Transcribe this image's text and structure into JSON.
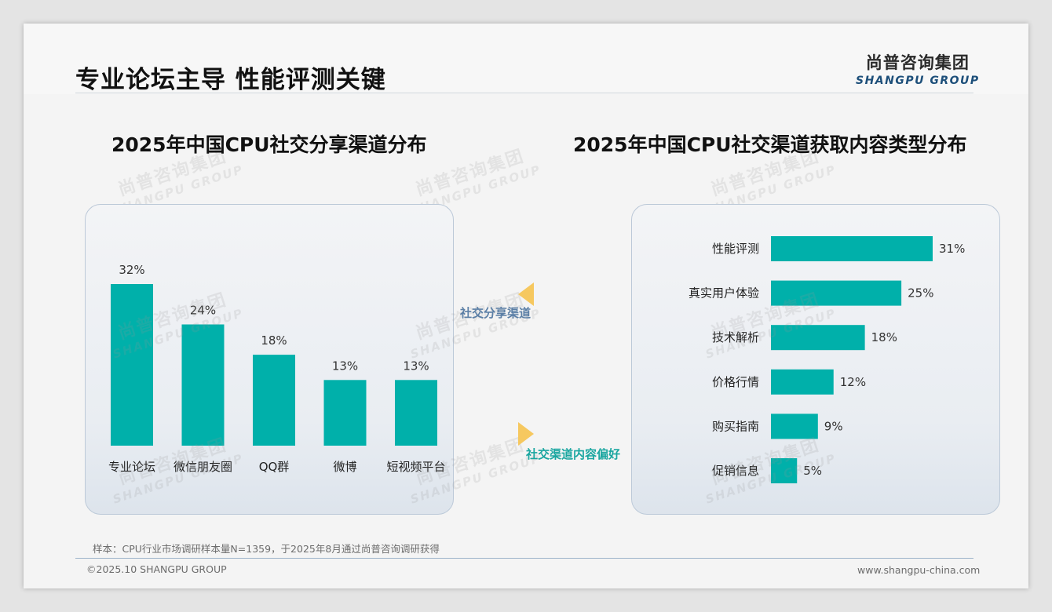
{
  "header": {
    "title": "专业论坛主导 性能评测关键",
    "logo_cn": "尚普咨询集团",
    "logo_en": "SHANGPU GROUP"
  },
  "colors": {
    "bar": "#00b0aa",
    "accent_arrow": "#f6c85f",
    "mid_label_top": "#5b7fa6",
    "mid_label_bottom": "#1aa6a0"
  },
  "middle": {
    "label_top": "社交分享渠道",
    "label_bottom": "社交渠道内容偏好"
  },
  "chart_data": [
    {
      "type": "bar",
      "title": "2025年中国CPU社交分享渠道分布",
      "categories": [
        "专业论坛",
        "微信朋友圈",
        "QQ群",
        "微博",
        "短视频平台"
      ],
      "values": [
        32,
        24,
        18,
        13,
        13
      ],
      "value_labels": [
        "32%",
        "24%",
        "18%",
        "13%",
        "13%"
      ],
      "unit": "%",
      "xlabel": "",
      "ylabel": "",
      "ylim": [
        0,
        32
      ],
      "grid": false,
      "legend": "none"
    },
    {
      "type": "bar",
      "orientation": "horizontal",
      "title": "2025年中国CPU社交渠道获取内容类型分布",
      "categories": [
        "性能评测",
        "真实用户体验",
        "技术解析",
        "价格行情",
        "购买指南",
        "促销信息"
      ],
      "values": [
        31,
        25,
        18,
        12,
        9,
        5
      ],
      "value_labels": [
        "31%",
        "25%",
        "18%",
        "12%",
        "9%",
        "5%"
      ],
      "unit": "%",
      "xlabel": "",
      "ylabel": "",
      "xlim": [
        0,
        31
      ],
      "grid": false,
      "legend": "none"
    }
  ],
  "footer": {
    "note": "样本：CPU行业市场调研样本量N=1359，于2025年8月通过尚普咨询调研获得",
    "copyright": "©2025.10 SHANGPU GROUP",
    "website": "www.shangpu-china.com"
  }
}
